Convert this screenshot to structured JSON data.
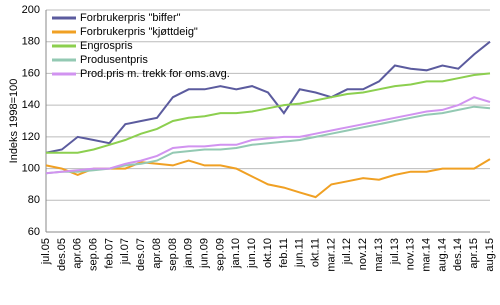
{
  "chart_data": {
    "type": "line",
    "ylabel": "Indeks 1998=100",
    "categories": [
      "jul.05",
      "des.05",
      "apr.06",
      "sep.06",
      "feb.07",
      "jul.07",
      "des.07",
      "apr.08",
      "sep.08",
      "jan.09",
      "jun.09",
      "sep.09",
      "jan.10",
      "jun.10",
      "okt.10",
      "feb.11",
      "jun.11",
      "okt.11",
      "mar.12",
      "jul.12",
      "nov.12",
      "mar.13",
      "jul.13",
      "nov.13",
      "mar.14",
      "aug.14",
      "des.14",
      "apr.15",
      "aug.15"
    ],
    "series": [
      {
        "name": "Forbrukerpris \"biffer\"",
        "color": "#5b5b9e",
        "values": [
          110,
          112,
          120,
          118,
          116,
          128,
          130,
          132,
          145,
          150,
          150,
          152,
          150,
          152,
          148,
          135,
          150,
          148,
          145,
          150,
          150,
          155,
          165,
          163,
          162,
          165,
          163,
          172,
          180
        ]
      },
      {
        "name": "Forbrukerpris \"kjøttdeig\"",
        "color": "#f0a023",
        "values": [
          102,
          100,
          96,
          100,
          100,
          100,
          104,
          103,
          102,
          105,
          102,
          102,
          100,
          95,
          90,
          88,
          85,
          82,
          90,
          92,
          94,
          93,
          96,
          98,
          98,
          100,
          100,
          100,
          106
        ]
      },
      {
        "name": "Engrospris",
        "color": "#8ccf4f",
        "values": [
          110,
          110,
          110,
          112,
          115,
          118,
          122,
          125,
          130,
          132,
          133,
          135,
          135,
          136,
          138,
          140,
          141,
          143,
          145,
          147,
          148,
          150,
          152,
          153,
          155,
          155,
          157,
          159,
          160
        ]
      },
      {
        "name": "Produsentpris",
        "color": "#93c9b3",
        "values": [
          97,
          98,
          98,
          99,
          100,
          102,
          103,
          105,
          110,
          111,
          112,
          112,
          113,
          115,
          116,
          117,
          118,
          120,
          122,
          124,
          126,
          128,
          130,
          132,
          134,
          135,
          137,
          139,
          138
        ]
      },
      {
        "name": "Prod.pris m. trekk for oms.avg.",
        "color": "#d193f0",
        "values": [
          97,
          98,
          99,
          100,
          100,
          103,
          105,
          108,
          113,
          114,
          114,
          115,
          115,
          118,
          119,
          120,
          120,
          122,
          124,
          126,
          128,
          130,
          132,
          134,
          136,
          137,
          140,
          145,
          142
        ]
      }
    ],
    "ylim": [
      60,
      200
    ],
    "yticks": [
      60,
      80,
      100,
      120,
      140,
      160,
      180,
      200
    ],
    "grid": true,
    "legend": "top-left"
  }
}
